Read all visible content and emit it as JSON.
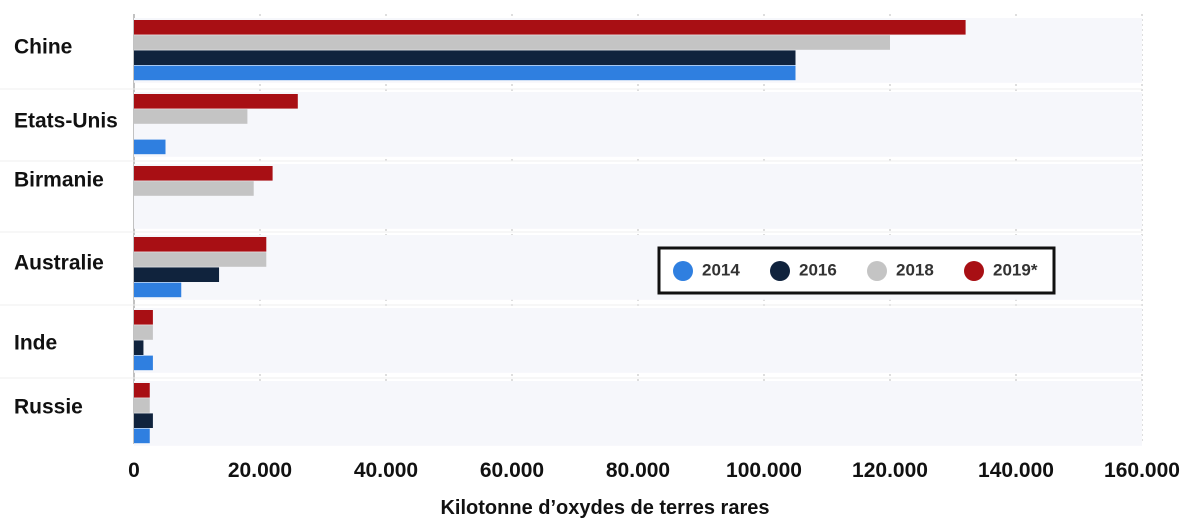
{
  "chart_data": {
    "type": "bar",
    "orientation": "horizontal",
    "title": "",
    "xlabel": "Kilotonne d’oxydes de terres rares",
    "ylabel": "",
    "categories": [
      "Chine",
      "Etats-Unis",
      "Birmanie",
      "Australie",
      "Inde",
      "Russie"
    ],
    "series": [
      {
        "name": "2014",
        "color": "#2f7fe0",
        "values": [
          105000,
          5000,
          null,
          7500,
          3000,
          2500
        ]
      },
      {
        "name": "2016",
        "color": "#10233d",
        "values": [
          105000,
          null,
          null,
          13500,
          1500,
          3000
        ]
      },
      {
        "name": "2018",
        "color": "#c4c4c4",
        "values": [
          120000,
          18000,
          19000,
          21000,
          3000,
          2500
        ]
      },
      {
        "name": "2019*",
        "color": "#a80f14",
        "values": [
          132000,
          26000,
          22000,
          21000,
          3000,
          2500
        ]
      }
    ],
    "xlim": [
      0,
      160000
    ],
    "ticks": [
      {
        "value": 0,
        "label": "0"
      },
      {
        "value": 20000,
        "label": "20.000"
      },
      {
        "value": 40000,
        "label": "40.000"
      },
      {
        "value": 60000,
        "label": "60.000"
      },
      {
        "value": 80000,
        "label": "80.000"
      },
      {
        "value": 100000,
        "label": "100.000"
      },
      {
        "value": 120000,
        "label": "120.000"
      },
      {
        "value": 140000,
        "label": "140.000"
      },
      {
        "value": 160000,
        "label": "160.000"
      }
    ],
    "grid": "vertical dotted",
    "legend_position": "center-right, boxed"
  }
}
